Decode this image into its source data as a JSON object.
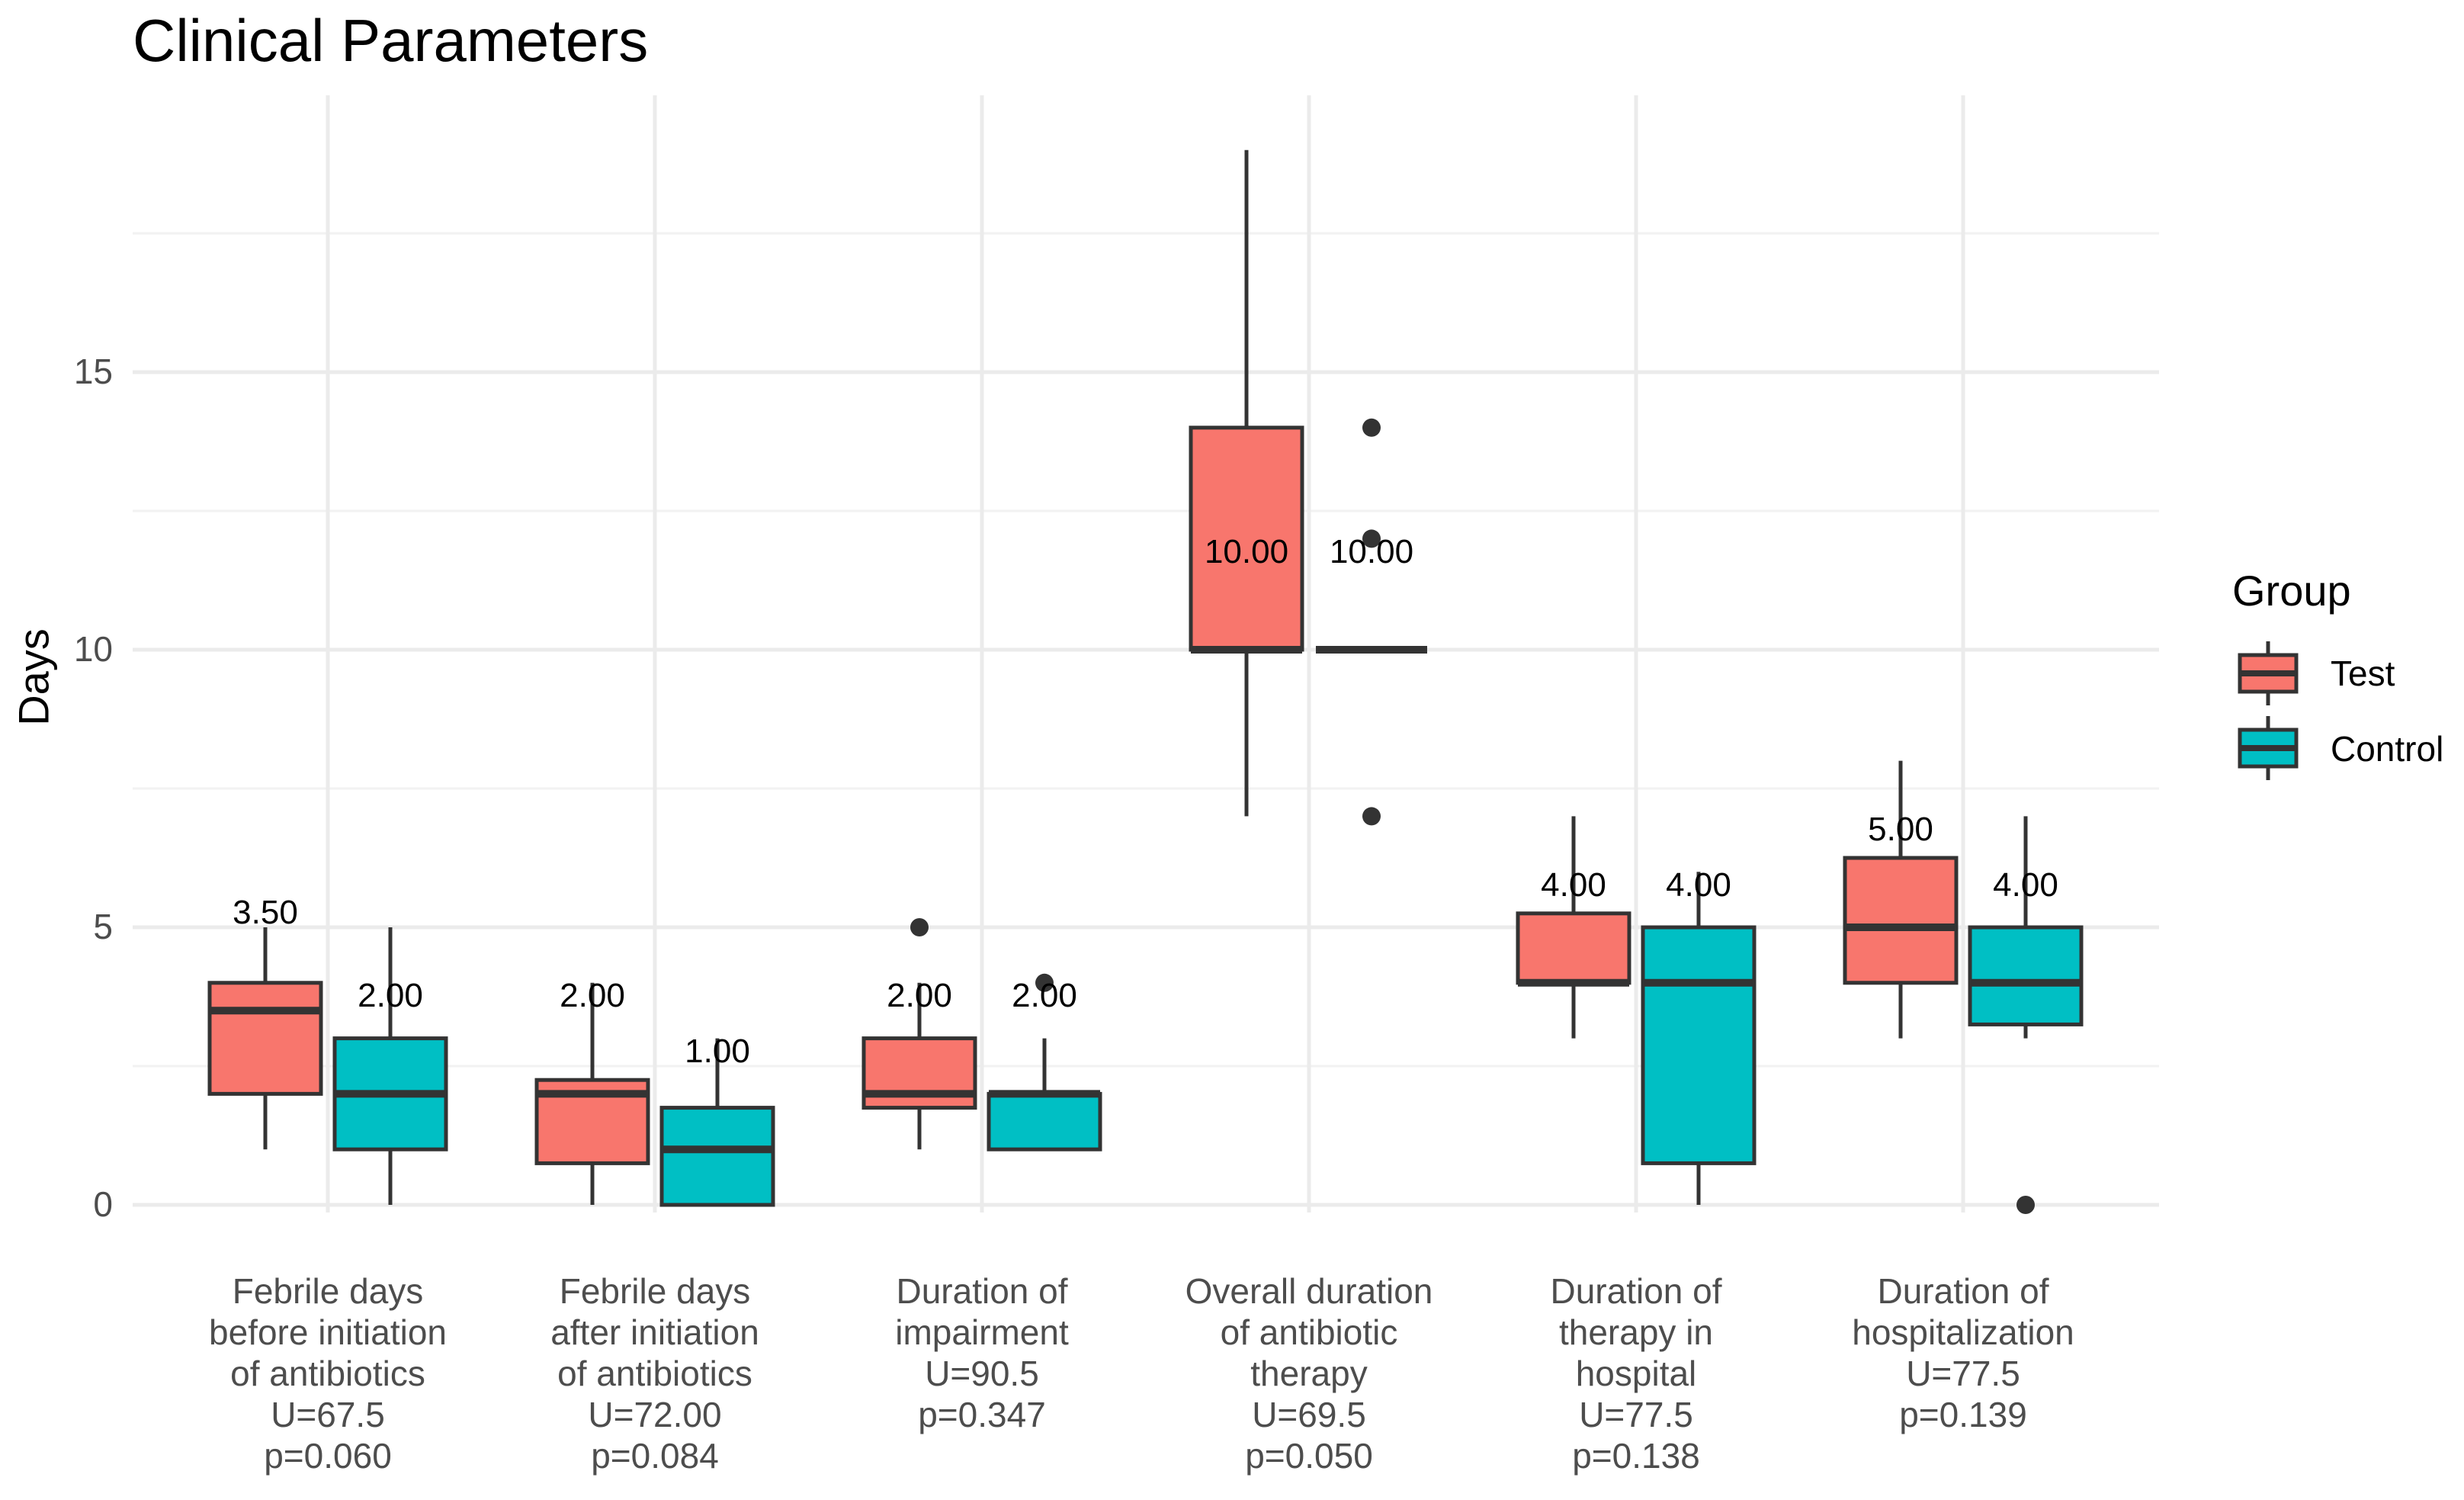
{
  "chart_data": {
    "type": "boxplot",
    "title": "Clinical Parameters",
    "ylabel": "Days",
    "xlabel": "",
    "ylim": [
      0,
      19
    ],
    "yticks": [
      0,
      5,
      10,
      15
    ],
    "grid": true,
    "legend": {
      "title": "Group",
      "position": "right",
      "entries": [
        {
          "name": "Test",
          "color": "#F8766D"
        },
        {
          "name": "Control",
          "color": "#00BFC4"
        }
      ]
    },
    "categories": [
      {
        "lines": [
          "Febrile days",
          "before initiation",
          "of antibiotics",
          "U=67.5",
          "p=0.060"
        ]
      },
      {
        "lines": [
          "Febrile days",
          "after initiation",
          "of antibiotics",
          "U=72.00",
          "p=0.084"
        ]
      },
      {
        "lines": [
          "Duration of",
          "impairment",
          "U=90.5",
          "p=0.347"
        ]
      },
      {
        "lines": [
          "Overall duration",
          "of antibiotic",
          "therapy",
          "U=69.5",
          "p=0.050"
        ]
      },
      {
        "lines": [
          "Duration of",
          "therapy in",
          "hospital",
          "U=77.5",
          "p=0.138"
        ]
      },
      {
        "lines": [
          "Duration of",
          "hospitalization",
          "U=77.5",
          "p=0.139"
        ]
      }
    ],
    "series": [
      {
        "name": "Test",
        "color": "#F8766D",
        "boxes": [
          {
            "min": 1,
            "q1": 2,
            "median": 3.5,
            "q3": 4,
            "max": 5,
            "outliers": [],
            "label": "3.50",
            "label_y": 5
          },
          {
            "min": 0,
            "q1": 0.75,
            "median": 2,
            "q3": 2.25,
            "max": 4,
            "outliers": [],
            "label": "2.00",
            "label_y": 3.5
          },
          {
            "min": 1,
            "q1": 1.75,
            "median": 2,
            "q3": 3,
            "max": 4,
            "outliers": [
              5
            ],
            "label": "2.00",
            "label_y": 3.5
          },
          {
            "min": 7,
            "q1": 10,
            "median": 10,
            "q3": 14,
            "max": 19,
            "outliers": [],
            "label": "10.00",
            "label_y": 11.5
          },
          {
            "min": 3,
            "q1": 4,
            "median": 4,
            "q3": 5.25,
            "max": 7,
            "outliers": [],
            "label": "4.00",
            "label_y": 5.5
          },
          {
            "min": 3,
            "q1": 4,
            "median": 5,
            "q3": 6.25,
            "max": 8,
            "outliers": [],
            "label": "5.00",
            "label_y": 6.5
          }
        ]
      },
      {
        "name": "Control",
        "color": "#00BFC4",
        "boxes": [
          {
            "min": 0,
            "q1": 1,
            "median": 2,
            "q3": 3,
            "max": 5,
            "outliers": [],
            "label": "2.00",
            "label_y": 3.5
          },
          {
            "min": 0,
            "q1": 0,
            "median": 1,
            "q3": 1.75,
            "max": 3,
            "outliers": [],
            "label": "1.00",
            "label_y": 2.5
          },
          {
            "min": 1,
            "q1": 1,
            "median": 2,
            "q3": 2,
            "max": 3,
            "outliers": [
              4
            ],
            "label": "2.00",
            "label_y": 3.5
          },
          {
            "min": 10,
            "q1": 10,
            "median": 10,
            "q3": 10,
            "max": 10,
            "outliers": [
              7,
              12,
              14
            ],
            "label": "10.00",
            "label_y": 11.5
          },
          {
            "min": 0,
            "q1": 0.75,
            "median": 4,
            "q3": 5,
            "max": 6,
            "outliers": [],
            "label": "4.00",
            "label_y": 5.5
          },
          {
            "min": 3,
            "q1": 3.25,
            "median": 4,
            "q3": 5,
            "max": 7,
            "outliers": [
              0
            ],
            "label": "4.00",
            "label_y": 5.5
          }
        ]
      }
    ]
  }
}
